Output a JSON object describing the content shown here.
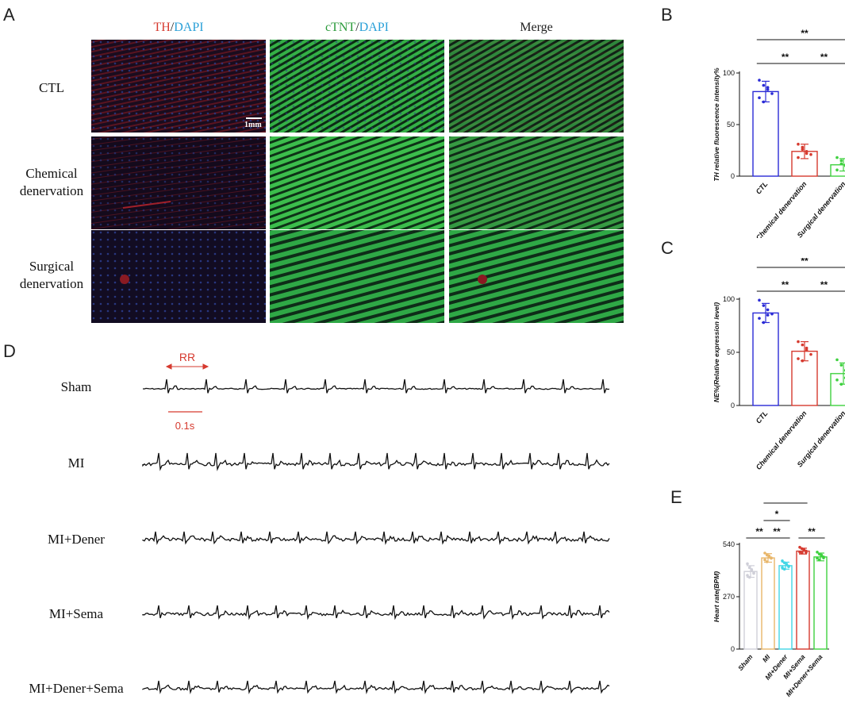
{
  "panels": {
    "A": {
      "letter": "A",
      "columns": [
        {
          "parts": [
            {
              "text": "TH",
              "color": "#d63a2f"
            },
            {
              "text": "/",
              "color": "#222"
            },
            {
              "text": "DAPI",
              "color": "#2aa0d8"
            }
          ]
        },
        {
          "parts": [
            {
              "text": "cTNT",
              "color": "#2a9a3a"
            },
            {
              "text": "/",
              "color": "#222"
            },
            {
              "text": "DAPI",
              "color": "#2aa0d8"
            }
          ]
        },
        {
          "parts": [
            {
              "text": "Merge",
              "color": "#222"
            }
          ]
        }
      ],
      "rows": [
        {
          "label_lines": [
            "CTL"
          ]
        },
        {
          "label_lines": [
            "Chemical",
            "denervation"
          ]
        },
        {
          "label_lines": [
            "Surgical",
            "denervation"
          ]
        }
      ],
      "scale_bar_label": "1mm"
    },
    "B": {
      "letter": "B"
    },
    "C": {
      "letter": "C"
    },
    "D": {
      "letter": "D",
      "traces": [
        "Sham",
        "MI",
        "MI+Dener",
        "MI+Sema",
        "MI+Dener+Sema"
      ],
      "rr_label": "RR",
      "time_scale_label": "0.1s",
      "annotation_color": "#d63a2f"
    },
    "E": {
      "letter": "E"
    }
  },
  "chart_data": [
    {
      "panel": "B",
      "type": "bar",
      "categories": [
        "CTL",
        "Chemical denervation",
        "Surgical denervation"
      ],
      "values": [
        82,
        24,
        11
      ],
      "errors": [
        10,
        7,
        6
      ],
      "points": [
        [
          93,
          88,
          84,
          80,
          76,
          72,
          86
        ],
        [
          31,
          28,
          24,
          21,
          18,
          26,
          22
        ],
        [
          18,
          15,
          11,
          8,
          6,
          12,
          10
        ]
      ],
      "colors": [
        "#2b2bd6",
        "#d63a2f",
        "#3fd13f"
      ],
      "ylabel": "TH relative fluorescence intensity%",
      "ylim": [
        0,
        100
      ],
      "yticks": [
        0,
        50,
        100
      ],
      "significance": [
        {
          "from": 0,
          "to": 2,
          "label": "**",
          "level": 2
        },
        {
          "from": 0,
          "to": 1,
          "label": "**",
          "level": 1
        },
        {
          "from": 1,
          "to": 2,
          "label": "**",
          "level": 1
        }
      ]
    },
    {
      "panel": "C",
      "type": "bar",
      "categories": [
        "CTL",
        "Chemical denervation",
        "Surgical denervation"
      ],
      "values": [
        87,
        51,
        30
      ],
      "errors": [
        9,
        9,
        10
      ],
      "points": [
        [
          99,
          94,
          90,
          86,
          82,
          78,
          85
        ],
        [
          60,
          57,
          52,
          48,
          44,
          42,
          54
        ],
        [
          43,
          38,
          33,
          28,
          24,
          20,
          26
        ]
      ],
      "colors": [
        "#2b2bd6",
        "#d63a2f",
        "#3fd13f"
      ],
      "ylabel": "NE%(Relative expression level)",
      "ylim": [
        0,
        100
      ],
      "yticks": [
        0,
        50,
        100
      ],
      "significance": [
        {
          "from": 0,
          "to": 2,
          "label": "**",
          "level": 2
        },
        {
          "from": 0,
          "to": 1,
          "label": "**",
          "level": 1
        },
        {
          "from": 1,
          "to": 2,
          "label": "**",
          "level": 1
        }
      ]
    },
    {
      "panel": "E",
      "type": "bar",
      "categories": [
        "Sham",
        "MI",
        "MI+Dener",
        "MI+Sema",
        "MI+Dener+Sema"
      ],
      "values": [
        400,
        470,
        430,
        505,
        475
      ],
      "errors": [
        30,
        22,
        18,
        15,
        20
      ],
      "points": [
        [
          440,
          420,
          405,
          395,
          380,
          370,
          410,
          390
        ],
        [
          495,
          485,
          475,
          470,
          460,
          450,
          480,
          468
        ],
        [
          455,
          445,
          435,
          428,
          420,
          412,
          438,
          425
        ],
        [
          525,
          518,
          510,
          505,
          500,
          495,
          512,
          498
        ],
        [
          500,
          490,
          482,
          475,
          468,
          460,
          485,
          470
        ]
      ],
      "colors": [
        "#cfcfd8",
        "#e8b66a",
        "#42d6e6",
        "#d63a2f",
        "#3fd13f"
      ],
      "ylabel": "Heart rate(BPM)",
      "ylim": [
        0,
        540
      ],
      "yticks": [
        0,
        270,
        540
      ],
      "significance": [
        {
          "from": 1,
          "to": 3,
          "label": "*",
          "level": 3
        },
        {
          "from": 1,
          "to": 2,
          "label": "*",
          "level": 2
        },
        {
          "from": 0,
          "to": 1,
          "label": "**",
          "level": 1
        },
        {
          "from": 1,
          "to": 2,
          "label": "**",
          "level": 1
        },
        {
          "from": 3,
          "to": 4,
          "label": "**",
          "level": 1
        }
      ]
    }
  ]
}
